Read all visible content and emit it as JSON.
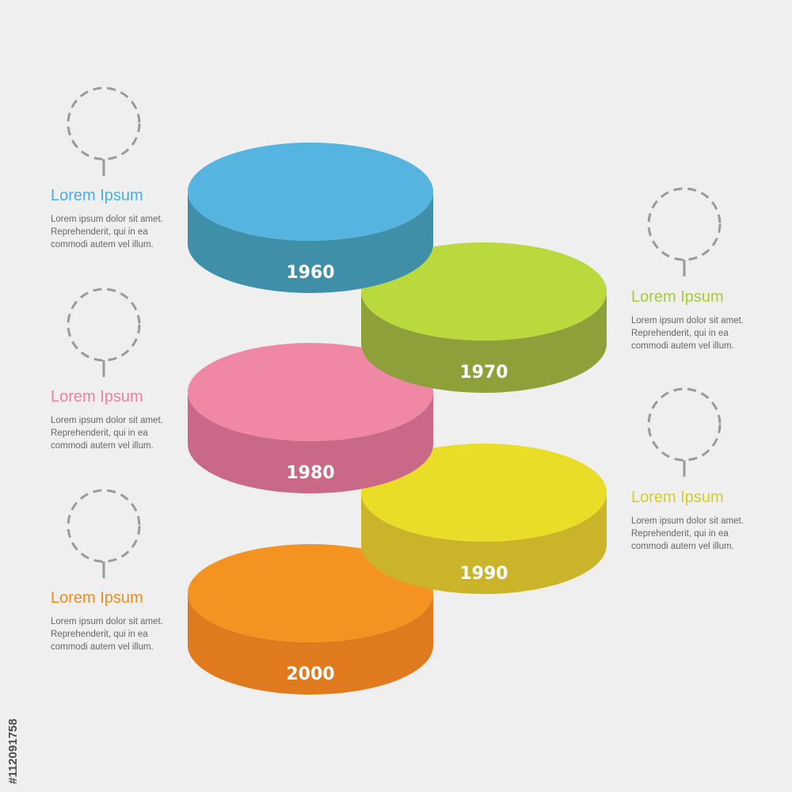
{
  "colors": {
    "background": "#efefef",
    "placeholder": "#9a9a9a",
    "year_text": "#ffffff"
  },
  "icons": {
    "placeholder": "dashed-circle-pin-icon"
  },
  "steps": [
    {
      "year": "1960",
      "title": "Lorem Ipsum",
      "top": "#55b4e0",
      "side": "#3e8fa7",
      "title_color": "#4aaee1",
      "text": [
        "Lorem ipsum dolor sit amet.",
        "Reprehenderit, qui in ea",
        "commodi autem vel illum."
      ]
    },
    {
      "year": "1970",
      "title": "Lorem Ipsum",
      "top": "#bad93c",
      "side": "#8da039",
      "title_color": "#a7cc35",
      "text": [
        "Lorem ipsum dolor sit amet.",
        "Reprehenderit, qui in ea",
        "commodi autem vel illum."
      ]
    },
    {
      "year": "1980",
      "title": "Lorem Ipsum",
      "top": "#ef87a5",
      "side": "#c96987",
      "title_color": "#ef7f9f",
      "text": [
        "Lorem ipsum dolor sit amet.",
        "Reprehenderit, qui in ea",
        "commodi autem vel illum."
      ]
    },
    {
      "year": "1990",
      "title": "Lorem Ipsum",
      "top": "#e9dd27",
      "side": "#cbb42a",
      "title_color": "#d5cd24",
      "text": [
        "Lorem ipsum dolor sit amet.",
        "Reprehenderit, qui in ea",
        "commodi autem vel illum."
      ]
    },
    {
      "year": "2000",
      "title": "Lorem Ipsum",
      "top": "#f59321",
      "side": "#df7a1f",
      "title_color": "#f08c1f",
      "text": [
        "Lorem ipsum dolor sit amet.",
        "Reprehenderit, qui in ea",
        "commodi autem vel illum."
      ]
    }
  ],
  "watermark": {
    "id": "#112091758"
  }
}
